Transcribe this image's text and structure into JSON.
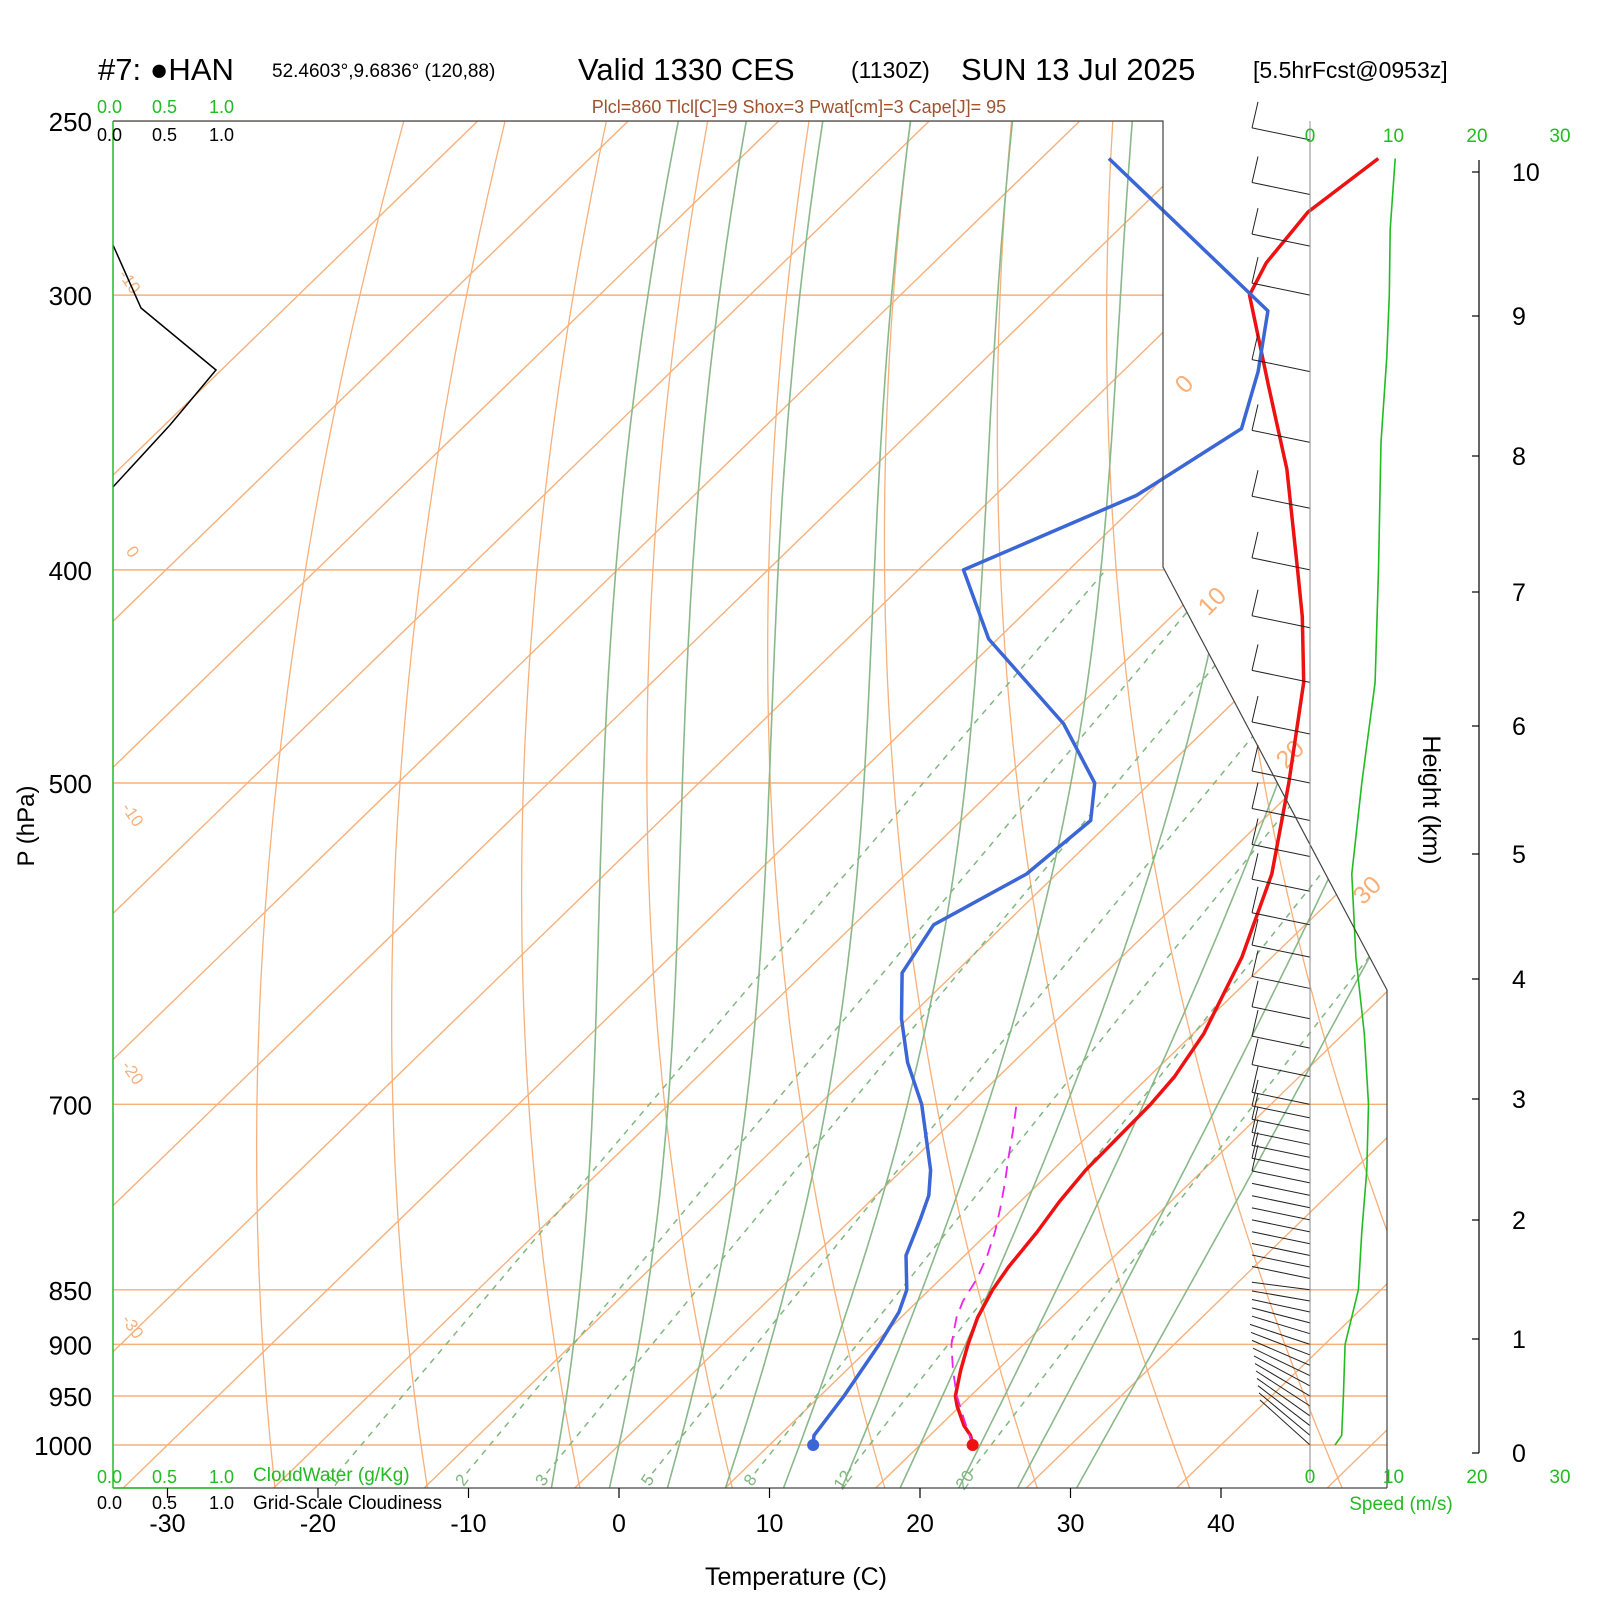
{
  "header": {
    "station": "#7: ●HAN",
    "location": "52.4603°,9.6836° (120,88)",
    "valid": "Valid 1330 CES",
    "zulu": "(1130Z)",
    "date": "SUN 13 Jul 2025",
    "forecast": "[5.5hrFcst@0953z]",
    "indices": "Plcl=860 Tlcl[C]=9 Shox=3 Pwat[cm]=3 Cape[J]= 95"
  },
  "colors": {
    "temperature": "#ee1111",
    "dewpoint": "#3a66d6",
    "parcel": "#ee22ee",
    "isotherm": "#f7b07a",
    "dry_adiabat": "#f7b07a",
    "moist_adiabat": "#8ab88a",
    "mixing_ratio": "#7fb77f",
    "wind_speed": "#22bb22",
    "cloud_labels": "#22bb22"
  },
  "cloud_scale": {
    "top_green": [
      "0.0",
      "0.5",
      "1.0"
    ],
    "top_black": [
      "0.0",
      "0.5",
      "1.0"
    ],
    "bottom_green": [
      "0.0",
      "0.5",
      "1.0"
    ],
    "bottom_black": [
      "0.0",
      "0.5",
      "1.0"
    ],
    "cloudwater_label": "CloudWater (g/Kg)",
    "cloudiness_label": "Grid-Scale Cloudiness"
  },
  "chart_data": {
    "type": "line",
    "title": "Skew-T log-P sounding",
    "xlabel": "Temperature (C)",
    "ylabel": "P (hPa)",
    "right_label": "Height (km)",
    "x_ticks": [
      "-30",
      "-20",
      "-10",
      "0",
      "10",
      "20",
      "30",
      "40"
    ],
    "p_ticks": [
      "250",
      "300",
      "400",
      "500",
      "700",
      "850",
      "900",
      "950",
      "1000"
    ],
    "height_ticks": [
      "0",
      "1",
      "2",
      "3",
      "4",
      "5",
      "6",
      "7",
      "8",
      "9",
      "10"
    ],
    "temp_label_ticks": [
      "0",
      "10",
      "20",
      "30"
    ],
    "skew_label_left": [
      "-10",
      "0",
      "-10",
      "-20",
      "-30"
    ],
    "mixing_ratio_labels": [
      "1",
      "2",
      "3",
      "5",
      "8",
      "12",
      "20"
    ],
    "isotherm_range_c": [
      -100,
      60
    ],
    "dry_adiabats_theta_k": [
      250,
      260,
      270,
      280,
      290,
      300,
      310,
      320,
      330,
      340,
      350,
      360,
      370,
      380,
      390,
      400,
      410,
      420
    ],
    "moist_adiabats_thetaw_c": [
      -4,
      0,
      4,
      8,
      12,
      16,
      20,
      24,
      28,
      32
    ],
    "mixing_ratio_gkg": [
      1,
      2,
      3,
      5,
      8,
      12,
      20
    ],
    "series": [
      {
        "name": "Temperature",
        "points": [
          [
            1000,
            23.5
          ],
          [
            990,
            22.7
          ],
          [
            980,
            21.6
          ],
          [
            960,
            19.8
          ],
          [
            950,
            19.0
          ],
          [
            925,
            17.6
          ],
          [
            900,
            16.3
          ],
          [
            875,
            15.1
          ],
          [
            850,
            14.2
          ],
          [
            830,
            13.7
          ],
          [
            800,
            13.2
          ],
          [
            775,
            12.6
          ],
          [
            750,
            12.2
          ],
          [
            725,
            12.1
          ],
          [
            700,
            12.0
          ],
          [
            680,
            11.7
          ],
          [
            650,
            10.7
          ],
          [
            600,
            8.0
          ],
          [
            550,
            4.3
          ],
          [
            500,
            -0.8
          ],
          [
            450,
            -6.7
          ],
          [
            420,
            -11.3
          ],
          [
            400,
            -14.8
          ],
          [
            360,
            -22.4
          ],
          [
            330,
            -29.3
          ],
          [
            300,
            -36.8
          ],
          [
            290,
            -37.9
          ],
          [
            275,
            -38.6
          ],
          [
            260,
            -37.6
          ]
        ]
      },
      {
        "name": "Dewpoint",
        "points": [
          [
            1000,
            12.9
          ],
          [
            990,
            12.3
          ],
          [
            950,
            11.6
          ],
          [
            900,
            10.4
          ],
          [
            870,
            9.5
          ],
          [
            850,
            8.5
          ],
          [
            820,
            6.1
          ],
          [
            790,
            4.6
          ],
          [
            770,
            3.5
          ],
          [
            750,
            1.9
          ],
          [
            700,
            -3.2
          ],
          [
            670,
            -7.0
          ],
          [
            640,
            -10.4
          ],
          [
            610,
            -13.5
          ],
          [
            580,
            -14.7
          ],
          [
            550,
            -12.0
          ],
          [
            520,
            -11.4
          ],
          [
            500,
            -13.7
          ],
          [
            470,
            -19.8
          ],
          [
            430,
            -30.6
          ],
          [
            400,
            -37.0
          ],
          [
            370,
            -30.6
          ],
          [
            345,
            -28.2
          ],
          [
            325,
            -31.0
          ],
          [
            305,
            -34.5
          ],
          [
            260,
            -55.5
          ]
        ]
      },
      {
        "name": "Parcel",
        "points": [
          [
            1000,
            23.5
          ],
          [
            975,
            21.3
          ],
          [
            950,
            19.1
          ],
          [
            925,
            17.1
          ],
          [
            900,
            15.2
          ],
          [
            875,
            13.7
          ],
          [
            860,
            13.0
          ],
          [
            840,
            12.4
          ],
          [
            820,
            11.5
          ],
          [
            800,
            10.4
          ],
          [
            780,
            9.1
          ],
          [
            760,
            7.7
          ],
          [
            740,
            6.2
          ],
          [
            720,
            4.7
          ],
          [
            700,
            3.1
          ]
        ]
      }
    ],
    "wind_speed_ms": [
      [
        1000,
        3.0
      ],
      [
        990,
        3.8
      ],
      [
        950,
        4.0
      ],
      [
        900,
        4.2
      ],
      [
        850,
        5.8
      ],
      [
        800,
        6.2
      ],
      [
        750,
        6.8
      ],
      [
        700,
        7.0
      ],
      [
        650,
        6.5
      ],
      [
        600,
        5.5
      ],
      [
        550,
        5.0
      ],
      [
        500,
        6.2
      ],
      [
        450,
        7.8
      ],
      [
        400,
        8.2
      ],
      [
        350,
        8.5
      ],
      [
        320,
        9.2
      ],
      [
        300,
        9.5
      ],
      [
        280,
        9.6
      ],
      [
        260,
        10.2
      ]
    ],
    "wind_speed_scale": {
      "label": "Speed (m/s)",
      "ticks": [
        "0",
        "10",
        "20",
        "30"
      ]
    }
  }
}
